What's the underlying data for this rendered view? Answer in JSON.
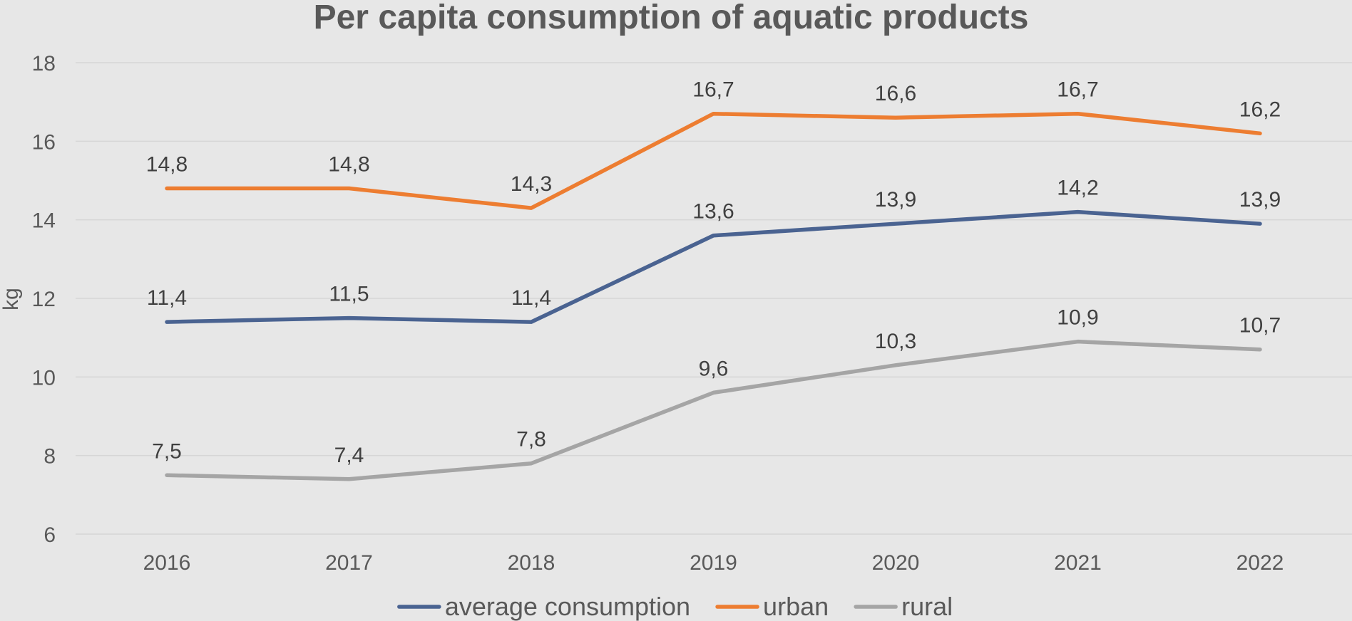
{
  "chart_data": {
    "type": "line",
    "title": "Per capita consumption of aquatic products",
    "xlabel": "",
    "ylabel": "kg",
    "categories": [
      "2016",
      "2017",
      "2018",
      "2019",
      "2020",
      "2021",
      "2022"
    ],
    "ylim": [
      6,
      18
    ],
    "yticks": [
      6,
      8,
      10,
      12,
      14,
      16,
      18
    ],
    "grid": true,
    "legend_position": "bottom",
    "series": [
      {
        "name": "average consumption",
        "color": "#4a6391",
        "values": [
          11.4,
          11.5,
          11.4,
          13.6,
          13.9,
          14.2,
          13.9
        ],
        "labels": [
          "11,4",
          "11,5",
          "11,4",
          "13,6",
          "13,9",
          "14,2",
          "13,9"
        ]
      },
      {
        "name": "urban",
        "color": "#ed7d31",
        "values": [
          14.8,
          14.8,
          14.3,
          16.7,
          16.6,
          16.7,
          16.2
        ],
        "labels": [
          "14,8",
          "14,8",
          "14,3",
          "16,7",
          "16,6",
          "16,7",
          "16,2"
        ]
      },
      {
        "name": "rural",
        "color": "#a5a5a5",
        "values": [
          7.5,
          7.4,
          7.8,
          9.6,
          10.3,
          10.9,
          10.7
        ],
        "labels": [
          "7,5",
          "7,4",
          "7,8",
          "9,6",
          "10,3",
          "10,9",
          "10,7"
        ]
      }
    ]
  }
}
